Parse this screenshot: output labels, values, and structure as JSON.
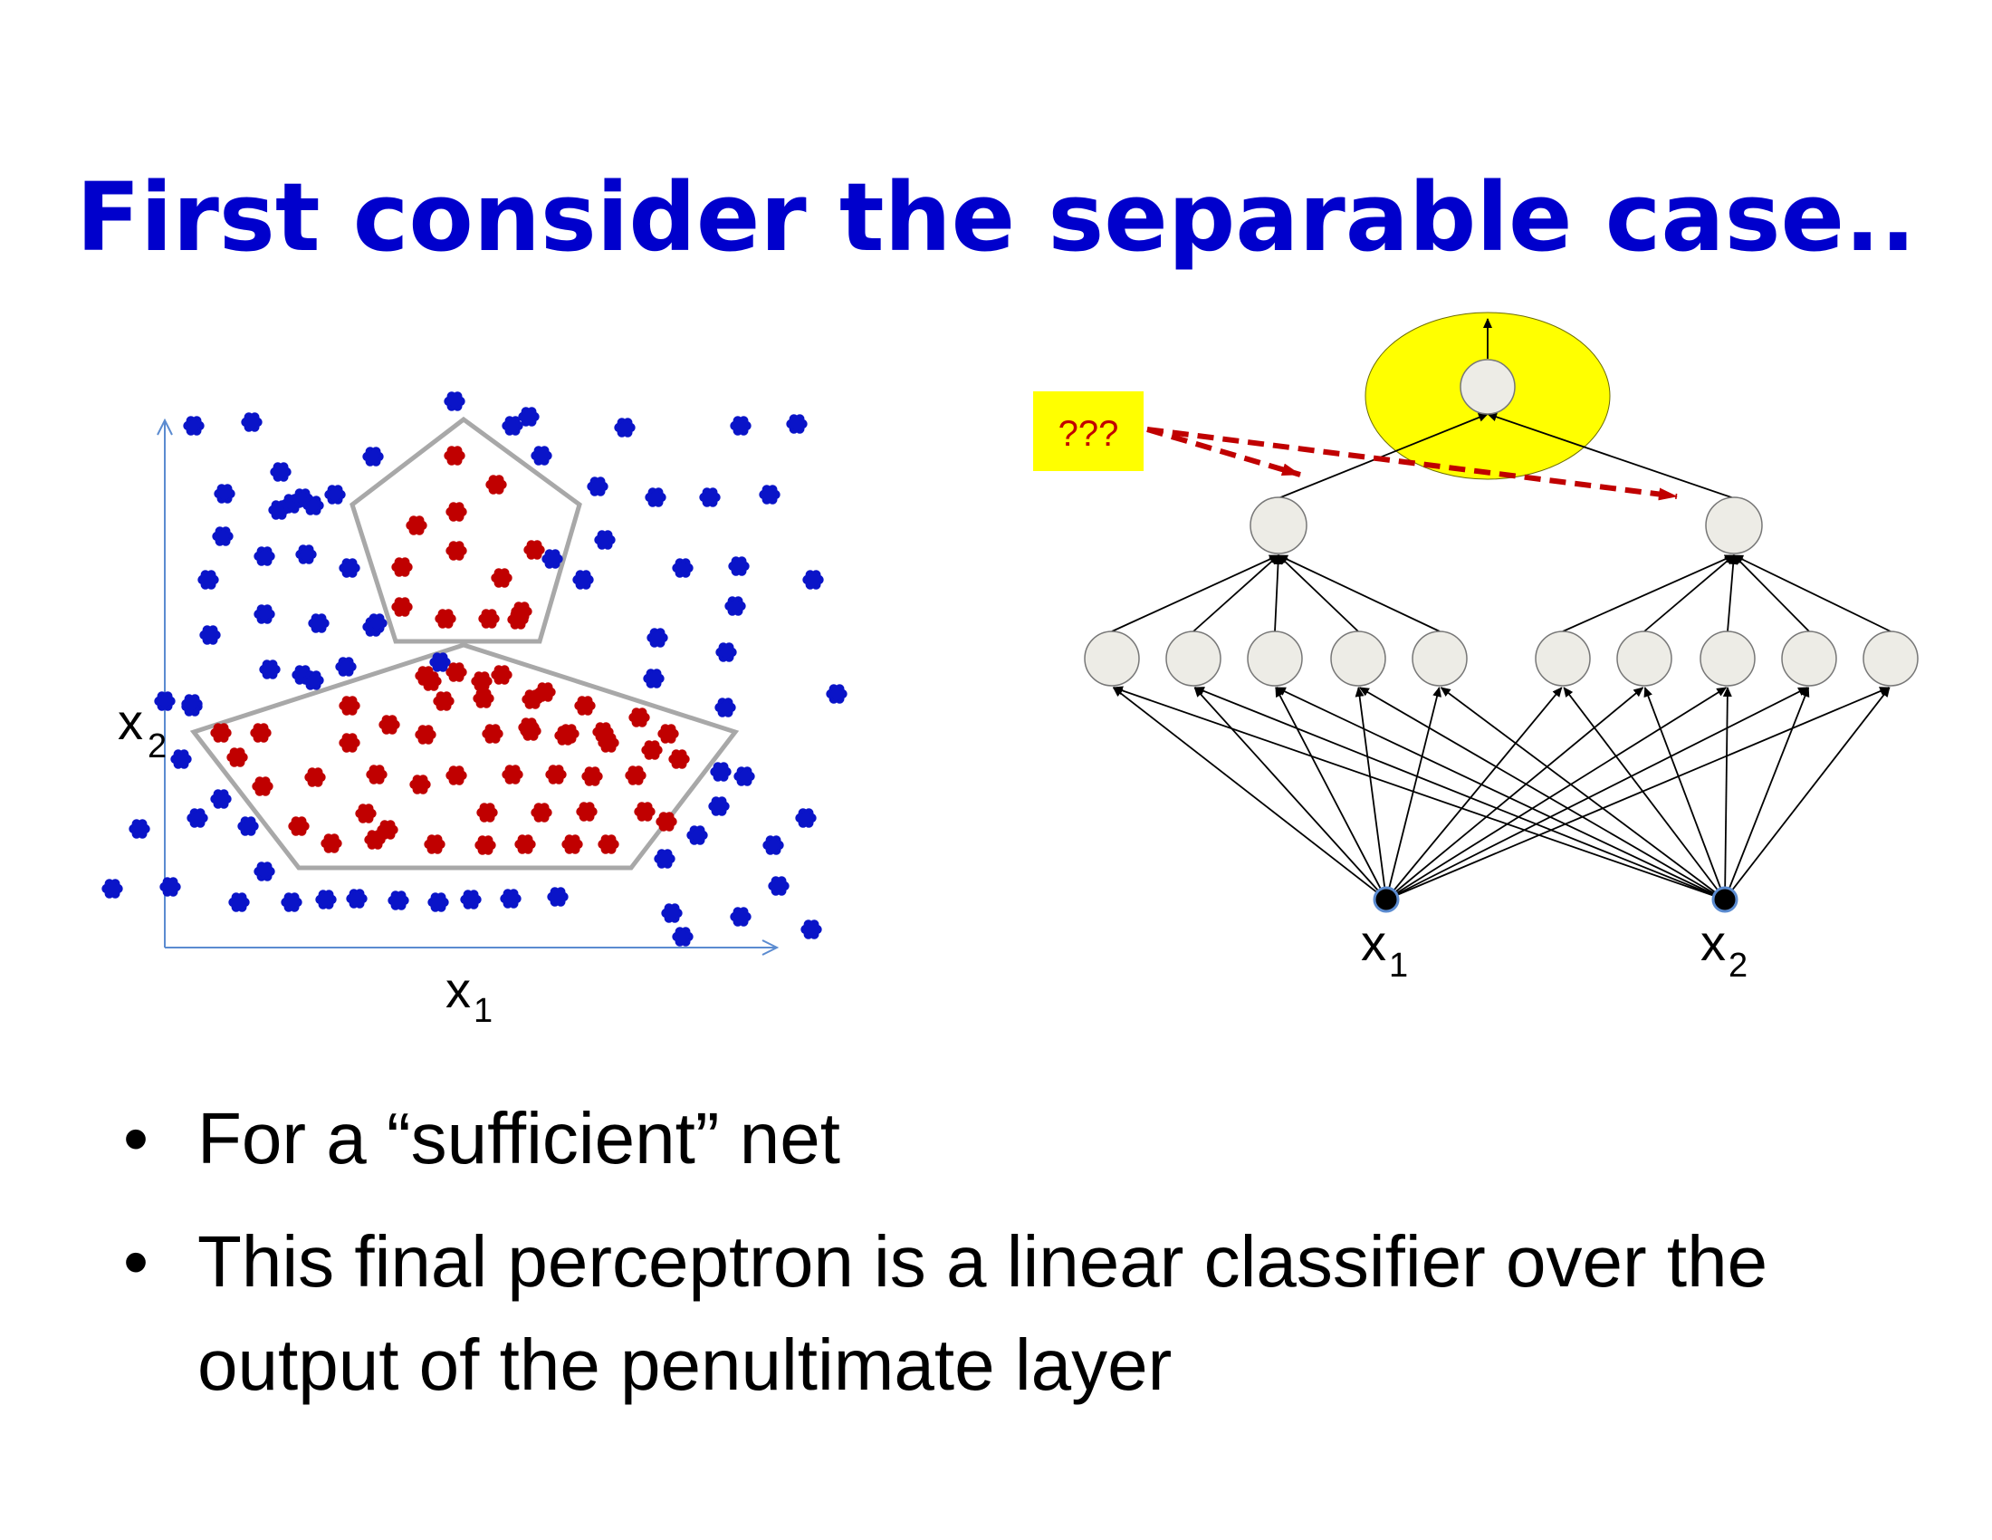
{
  "slide": {
    "title": "First consider the separable case.."
  },
  "bullets": [
    {
      "text": "For a “sufficient” net"
    },
    {
      "text": "This final perceptron is a linear classifier over the output of the penultimate layer"
    }
  ],
  "scatter": {
    "x_axis_label": "x",
    "x_axis_sub": "1",
    "y_axis_label": "x",
    "y_axis_sub": "2"
  },
  "network": {
    "input_labels": [
      {
        "label": "x",
        "sub": "1"
      },
      {
        "label": "x",
        "sub": "2"
      }
    ],
    "question_label": "???",
    "hidden_units_per_group": 5,
    "penultimate_units": 2,
    "output_units": 1
  },
  "colors": {
    "title": "#0000CC",
    "class_outside": "#0A14C8",
    "class_inside": "#C00000",
    "region_outline": "#A8A8A8",
    "axis": "#5B8BD0",
    "neuron_fill": "#EDECE6",
    "output_highlight": "#FFFF00",
    "question_box": "#FFFF00",
    "question_arrow": "#C00000"
  }
}
